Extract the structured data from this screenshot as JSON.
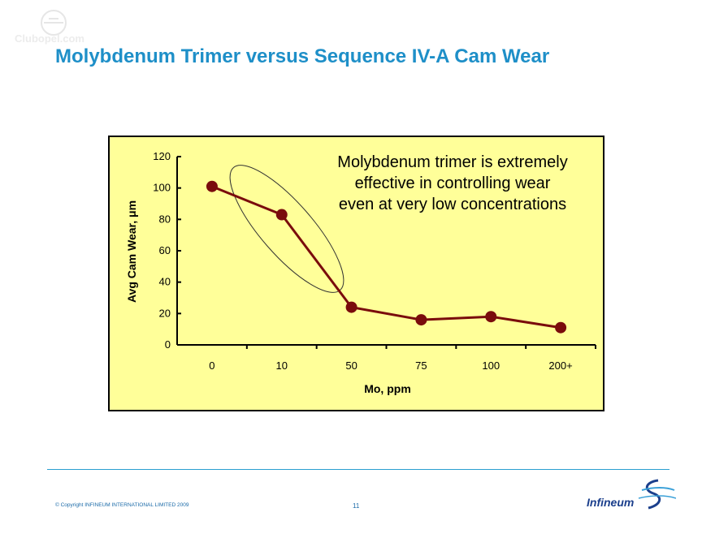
{
  "slide": {
    "title": "Molybdenum Trimer versus Sequence IV-A Cam Wear",
    "copyright": "© Copyright INFINEUM INTERNATIONAL LIMITED 2009",
    "page_number": "11",
    "logo_text": "Infineum",
    "watermark_text": "Clubopel.com"
  },
  "colors": {
    "title": "#1e8fc8",
    "plot_background": "#ffff99",
    "series_line": "#7a0c0c",
    "marker": "#7a0c0c"
  },
  "chart_data": {
    "type": "line",
    "categories": [
      "0",
      "10",
      "50",
      "75",
      "100",
      "200+"
    ],
    "series": [
      {
        "values": [
          101,
          83,
          24,
          16,
          18,
          11
        ]
      }
    ],
    "xlabel": "Mo, ppm",
    "ylabel": "Avg Cam Wear, μm",
    "ylim": [
      0,
      120
    ],
    "yticks": [
      0,
      20,
      40,
      60,
      80,
      100,
      120
    ],
    "annotation": {
      "lines": [
        "Molybdenum trimer is extremely",
        "effective in controlling wear",
        "even at very low concentrations"
      ]
    },
    "highlight_ellipse": true,
    "grid": false
  }
}
